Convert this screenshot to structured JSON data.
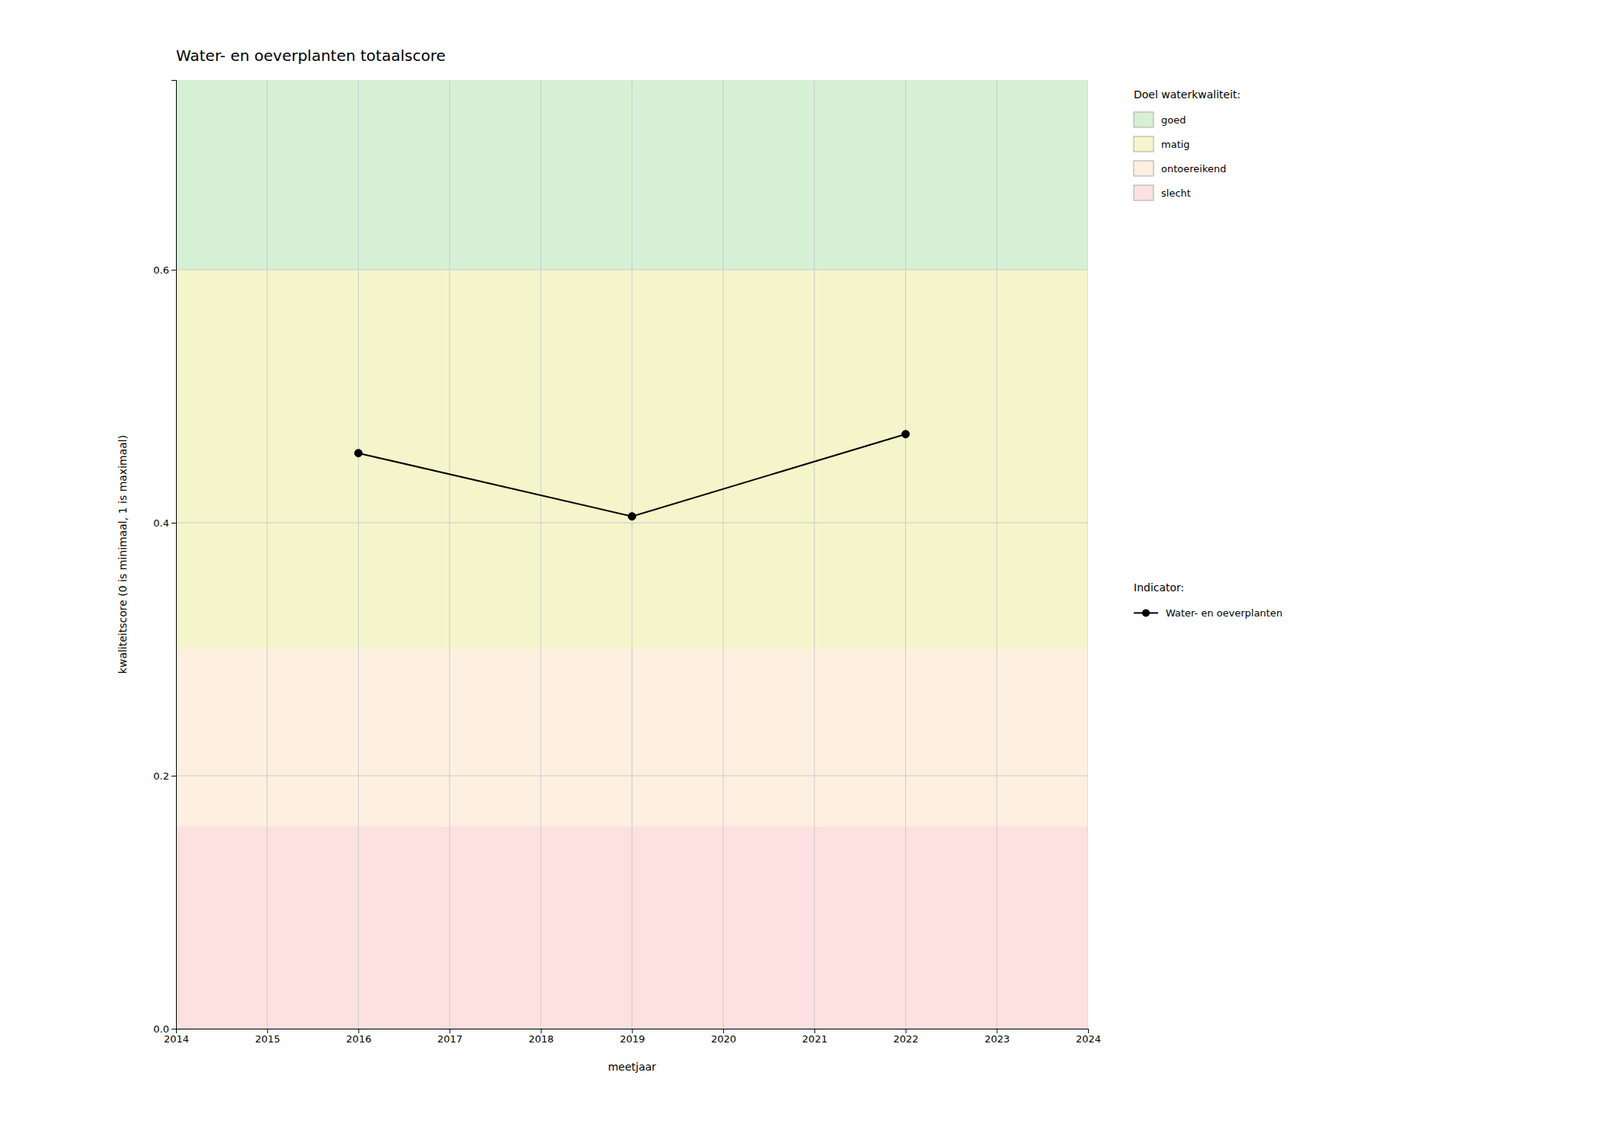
{
  "chart_data": {
    "type": "line",
    "title": "Water- en oeverplanten totaalscore",
    "x_label": "meetjaar",
    "y_label": "kwaliteitscore (0 is minimaal, 1 is maximaal)",
    "x": [
      2016,
      2019,
      2022
    ],
    "series": [
      {
        "name": "Water- en oeverplanten",
        "color": "#000000",
        "marker": "circle",
        "values": [
          0.455,
          0.405,
          0.47
        ]
      }
    ],
    "xlim": [
      2014,
      2024
    ],
    "ylim": [
      0.0,
      0.75
    ],
    "xticks": [
      2014,
      2015,
      2016,
      2017,
      2018,
      2019,
      2020,
      2021,
      2022,
      2023,
      2024
    ],
    "yticks": [
      {
        "value": 0.0,
        "label": "0.0"
      },
      0.2,
      0.4,
      0.6
    ],
    "grid": true,
    "legend": "right",
    "zones_title": "Doel waterkwaliteit:",
    "zones": [
      {
        "label": "goed",
        "ymin": 0.6,
        "ymax": 0.75,
        "color": "#d6f0d6"
      },
      {
        "label": "matig",
        "ymin": 0.3,
        "ymax": 0.6,
        "color": "#f5f5cc"
      },
      {
        "label": "ontoereikend",
        "ymin": 0.16,
        "ymax": 0.3,
        "color": "#fdf0e0"
      },
      {
        "label": "slecht",
        "ymin": 0.0,
        "ymax": 0.16,
        "color": "#fde0e0"
      }
    ],
    "series_title": "Indicator:"
  }
}
